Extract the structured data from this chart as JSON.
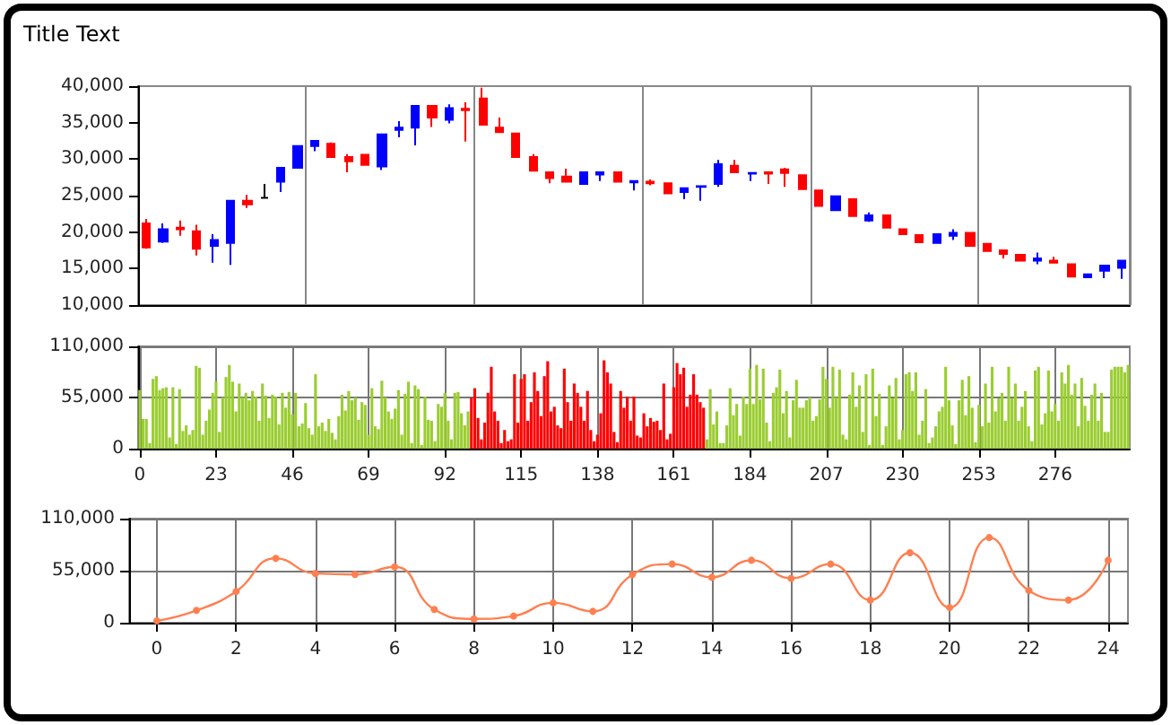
{
  "chart_data": [
    {
      "type": "candlestick",
      "title": "Title Text",
      "categories": [
        null,
        null,
        null,
        null,
        null,
        null,
        null,
        null,
        null,
        null,
        null,
        null,
        null,
        null,
        null,
        null,
        null,
        null,
        null,
        null,
        null,
        null,
        null,
        null,
        null,
        null,
        null,
        null,
        null,
        null,
        null,
        null,
        null,
        null,
        null,
        null,
        null,
        null,
        null,
        null,
        null,
        null,
        null,
        null,
        null,
        null,
        null,
        null,
        null,
        null,
        null,
        null,
        null,
        null,
        null,
        null,
        null,
        null,
        null
      ],
      "ohlc": [
        [
          21200,
          21800,
          17700,
          17900
        ],
        [
          18700,
          21200,
          18500,
          20400
        ],
        [
          20600,
          21600,
          19500,
          20400
        ],
        [
          20100,
          21000,
          16800,
          17700
        ],
        [
          18100,
          19700,
          15800,
          18900
        ],
        [
          18500,
          24300,
          15500,
          24300
        ],
        [
          24300,
          25100,
          23300,
          23800
        ],
        [
          24700,
          26600,
          24700,
          24700
        ],
        [
          26900,
          28800,
          25500,
          28800
        ],
        [
          28800,
          31800,
          28800,
          31800
        ],
        [
          31800,
          32500,
          31100,
          32500
        ],
        [
          32100,
          32300,
          30300,
          30300
        ],
        [
          30300,
          30700,
          28200,
          29700
        ],
        [
          30600,
          30700,
          29200,
          29200
        ],
        [
          29000,
          33400,
          28500,
          33400
        ],
        [
          34000,
          35200,
          33000,
          34300
        ],
        [
          34300,
          37300,
          31900,
          37300
        ],
        [
          37300,
          37300,
          34400,
          35700
        ],
        [
          35400,
          37500,
          34900,
          37000
        ],
        [
          36900,
          37800,
          32400,
          36700
        ],
        [
          38300,
          39800,
          34700,
          34700
        ],
        [
          34300,
          35700,
          33700,
          33700
        ],
        [
          33500,
          33500,
          30300,
          30300
        ],
        [
          30300,
          30700,
          28400,
          28400
        ],
        [
          28200,
          28200,
          26700,
          27400
        ],
        [
          27600,
          28700,
          26900,
          26900
        ],
        [
          26600,
          28200,
          26600,
          28200
        ],
        [
          27900,
          28200,
          27000,
          28200
        ],
        [
          28200,
          28200,
          26900,
          26900
        ],
        [
          26800,
          27000,
          25700,
          27000
        ],
        [
          26900,
          27200,
          26400,
          26700
        ],
        [
          26700,
          26700,
          25300,
          25300
        ],
        [
          25500,
          26000,
          24500,
          26000
        ],
        [
          26200,
          26300,
          24300,
          26300
        ],
        [
          26600,
          29900,
          26200,
          29300
        ],
        [
          29100,
          29900,
          28200,
          28200
        ],
        [
          28000,
          28100,
          27000,
          28100
        ],
        [
          28200,
          28200,
          26600,
          28000
        ],
        [
          28600,
          28800,
          26200,
          28100
        ],
        [
          27800,
          27800,
          25900,
          25900
        ],
        [
          25700,
          25700,
          23600,
          23600
        ],
        [
          23000,
          24900,
          22900,
          24900
        ],
        [
          24500,
          24500,
          22200,
          22200
        ],
        [
          21600,
          22700,
          21400,
          22300
        ],
        [
          22300,
          22300,
          20600,
          20600
        ],
        [
          20400,
          20400,
          19700,
          19700
        ],
        [
          19600,
          19600,
          18600,
          18600
        ],
        [
          18500,
          19700,
          18500,
          19700
        ],
        [
          19500,
          20400,
          18900,
          19900
        ],
        [
          19900,
          19900,
          18100,
          18100
        ],
        [
          18400,
          18400,
          17400,
          17400
        ],
        [
          17500,
          17500,
          16400,
          17000
        ],
        [
          16900,
          16900,
          16100,
          16100
        ],
        [
          16100,
          17200,
          15600,
          16400
        ],
        [
          16100,
          16600,
          15800,
          15800
        ],
        [
          15600,
          15600,
          13900,
          13900
        ],
        [
          13800,
          14200,
          13800,
          14200
        ],
        [
          14700,
          15400,
          13700,
          15400
        ],
        [
          15100,
          16100,
          13600,
          16100
        ]
      ],
      "colors": [
        "#ff0000",
        "#0000ff",
        "#ff0000",
        "#ff0000",
        "#0000ff",
        "#0000ff",
        "#ff0000",
        "#000000",
        "#0000ff",
        "#0000ff",
        "#0000ff",
        "#ff0000",
        "#ff0000",
        "#ff0000",
        "#0000ff",
        "#0000ff",
        "#0000ff",
        "#ff0000",
        "#0000ff",
        "#ff0000",
        "#ff0000",
        "#ff0000",
        "#ff0000",
        "#ff0000",
        "#ff0000",
        "#ff0000",
        "#0000ff",
        "#0000ff",
        "#ff0000",
        "#0000ff",
        "#ff0000",
        "#ff0000",
        "#0000ff",
        "#0000ff",
        "#0000ff",
        "#ff0000",
        "#0000ff",
        "#ff0000",
        "#ff0000",
        "#ff0000",
        "#ff0000",
        "#0000ff",
        "#ff0000",
        "#0000ff",
        "#ff0000",
        "#ff0000",
        "#ff0000",
        "#0000ff",
        "#0000ff",
        "#ff0000",
        "#ff0000",
        "#ff0000",
        "#ff0000",
        "#0000ff",
        "#ff0000",
        "#ff0000",
        "#0000ff",
        "#0000ff",
        "#0000ff"
      ],
      "ylim": [
        10000,
        40000
      ],
      "yticks": [
        {
          "value": 10000,
          "label": "10,000"
        },
        {
          "value": 15000,
          "label": "15,000"
        },
        {
          "value": 20000,
          "label": "20,000"
        },
        {
          "value": 25000,
          "label": "25,000"
        },
        {
          "value": 30000,
          "label": "30,000"
        },
        {
          "value": 35000,
          "label": "35,000"
        },
        {
          "value": 40000,
          "label": "40,000"
        }
      ]
    },
    {
      "type": "bar",
      "x": [
        0,
        1,
        2,
        3,
        4,
        5,
        6,
        7,
        8,
        9,
        10,
        11,
        12,
        13,
        14,
        15,
        16,
        17,
        18,
        19,
        20,
        21,
        22,
        23,
        24,
        25,
        26,
        27,
        28,
        29,
        30,
        31,
        32,
        33,
        34,
        35,
        36,
        37,
        38,
        39,
        40,
        41,
        42,
        43,
        44,
        45,
        46,
        47,
        48,
        49,
        50,
        51,
        52,
        53,
        54,
        55,
        56,
        57,
        58,
        59,
        60,
        61,
        62,
        63,
        64,
        65,
        66,
        67,
        68,
        69,
        70,
        71,
        72,
        73,
        74,
        75,
        76,
        77,
        78,
        79,
        80,
        81,
        82,
        83,
        84,
        85,
        86,
        87,
        88,
        89,
        90,
        91,
        92,
        93,
        94,
        95,
        96,
        97,
        98,
        99,
        100,
        101,
        102,
        103,
        104,
        105,
        106,
        107,
        108,
        109,
        110,
        111,
        112,
        113,
        114,
        115,
        116,
        117,
        118,
        119,
        120,
        121,
        122,
        123,
        124,
        125,
        126,
        127,
        128,
        129,
        130,
        131,
        132,
        133,
        134,
        135,
        136,
        137,
        138,
        139,
        140,
        141,
        142,
        143,
        144,
        145,
        146,
        147,
        148,
        149,
        150,
        151,
        152,
        153,
        154,
        155,
        156,
        157,
        158,
        159,
        160,
        161,
        162,
        163,
        164,
        165,
        166,
        167,
        168,
        169,
        170,
        171,
        172,
        173,
        174,
        175,
        176,
        177,
        178,
        179,
        180,
        181,
        182,
        183,
        184,
        185,
        186,
        187,
        188,
        189,
        190,
        191,
        192,
        193,
        194,
        195,
        196,
        197,
        198,
        199,
        200,
        201,
        202,
        203,
        204,
        205,
        206,
        207,
        208,
        209,
        210,
        211,
        212,
        213,
        214,
        215,
        216,
        217,
        218,
        219,
        220,
        221,
        222,
        223,
        224,
        225,
        226,
        227,
        228,
        229,
        230,
        231,
        232,
        233,
        234,
        235,
        236,
        237,
        238,
        239,
        240,
        241,
        242,
        243,
        244,
        245,
        246,
        247,
        248,
        249,
        250,
        251,
        252,
        253,
        254,
        255,
        256,
        257,
        258,
        259,
        260,
        261,
        262,
        263,
        264,
        265,
        266,
        267,
        268,
        269,
        270,
        271,
        272,
        273,
        274,
        275,
        276,
        277,
        278,
        279,
        280,
        281,
        282,
        283,
        284,
        285,
        286,
        287,
        288,
        289,
        290,
        291,
        292,
        293,
        294,
        295,
        296,
        297,
        298
      ],
      "values": [
        63000,
        32000,
        32000,
        6000,
        75000,
        78000,
        63000,
        65000,
        66000,
        12000,
        66000,
        5000,
        64000,
        19000,
        25000,
        15000,
        20000,
        89000,
        87000,
        15000,
        30000,
        42000,
        60000,
        72000,
        18000,
        55000,
        77000,
        90000,
        72000,
        40000,
        70000,
        55000,
        60000,
        52000,
        62000,
        56000,
        30000,
        70000,
        57000,
        33000,
        58000,
        56000,
        26000,
        60000,
        44000,
        61000,
        37000,
        60000,
        24000,
        27000,
        49000,
        22000,
        15000,
        80000,
        24000,
        28000,
        19000,
        32000,
        17000,
        10000,
        35000,
        58000,
        41000,
        62000,
        52000,
        55000,
        31000,
        50000,
        47000,
        15000,
        65000,
        24000,
        21000,
        73000,
        55000,
        40000,
        32000,
        43000,
        63000,
        15000,
        59000,
        72000,
        6000,
        68000,
        64000,
        4000,
        56000,
        31000,
        30000,
        8000,
        48000,
        45000,
        60000,
        30000,
        10000,
        60000,
        61000,
        38000,
        25000,
        40000,
        55000,
        65000,
        33000,
        10000,
        28000,
        60000,
        88000,
        40000,
        30000,
        6000,
        20000,
        8000,
        10000,
        80000,
        28000,
        75000,
        80000,
        30000,
        50000,
        82000,
        62000,
        35000,
        78000,
        94000,
        40000,
        45000,
        25000,
        22000,
        86000,
        50000,
        30000,
        70000,
        60000,
        45000,
        30000,
        62000,
        20000,
        8000,
        15000,
        38000,
        95000,
        82000,
        70000,
        18000,
        7000,
        62000,
        44000,
        56000,
        30000,
        56000,
        14000,
        12000,
        38000,
        24000,
        33000,
        29000,
        30000,
        20000,
        70000,
        10000,
        16000,
        66000,
        92000,
        80000,
        87000,
        45000,
        58000,
        80000,
        58000,
        50000,
        44000,
        10000,
        64000,
        26000,
        40000,
        6000,
        6000,
        25000,
        65000,
        36000,
        48000,
        14000,
        56000,
        48000,
        86000,
        48000,
        90000,
        53000,
        86000,
        28000,
        8000,
        60000,
        66000,
        85000,
        38000,
        62000,
        12000,
        52000,
        74000,
        44000,
        44000,
        52000,
        55000,
        30000,
        35000,
        53000,
        88000,
        75000,
        44000,
        88000,
        55000,
        85000,
        15000,
        10000,
        58000,
        82000,
        45000,
        68000,
        18000,
        80000,
        4000,
        86000,
        35000,
        59000,
        4000,
        24000,
        68000,
        54000,
        76000,
        10000,
        20000,
        80000,
        82000,
        62000,
        82000,
        15000,
        30000,
        64000,
        6000,
        12000,
        24000,
        40000,
        45000,
        88000,
        52000,
        25000,
        5000,
        52000,
        74000,
        36000,
        78000,
        44000,
        7000,
        47000,
        24000,
        70000,
        28000,
        88000,
        40000,
        54000,
        60000,
        30000,
        88000,
        54000,
        70000,
        30000,
        45000,
        62000,
        24000,
        8000,
        84000,
        88000,
        26000,
        38000,
        84000,
        40000,
        48000,
        30000,
        82000,
        70000,
        90000,
        58000,
        70000,
        24000,
        76000,
        46000,
        30000,
        58000,
        70000,
        30000,
        60000,
        18000,
        18000,
        85000,
        88000,
        88000,
        88000,
        82000,
        90000
      ],
      "colors": [
        "#9acd32",
        "#9acd32",
        "#9acd32",
        "#9acd32",
        "#9acd32",
        "#9acd32",
        "#9acd32",
        "#9acd32",
        "#9acd32",
        "#9acd32",
        "#9acd32",
        "#9acd32",
        "#9acd32",
        "#9acd32",
        "#9acd32",
        "#9acd32",
        "#9acd32",
        "#9acd32",
        "#9acd32",
        "#9acd32",
        "#9acd32",
        "#9acd32",
        "#9acd32",
        "#9acd32",
        "#9acd32",
        "#9acd32",
        "#9acd32",
        "#9acd32",
        "#9acd32",
        "#9acd32",
        "#9acd32",
        "#9acd32",
        "#9acd32",
        "#9acd32",
        "#9acd32",
        "#9acd32",
        "#9acd32",
        "#9acd32",
        "#9acd32",
        "#9acd32",
        "#9acd32",
        "#9acd32",
        "#9acd32",
        "#9acd32",
        "#9acd32",
        "#9acd32",
        "#9acd32",
        "#9acd32",
        "#9acd32",
        "#9acd32",
        "#9acd32",
        "#9acd32",
        "#9acd32",
        "#9acd32",
        "#9acd32",
        "#9acd32",
        "#9acd32",
        "#9acd32",
        "#9acd32",
        "#9acd32",
        "#9acd32",
        "#9acd32",
        "#9acd32",
        "#9acd32",
        "#9acd32",
        "#9acd32",
        "#9acd32",
        "#9acd32",
        "#9acd32",
        "#9acd32",
        "#9acd32",
        "#9acd32",
        "#9acd32",
        "#9acd32",
        "#9acd32",
        "#9acd32",
        "#9acd32",
        "#9acd32",
        "#9acd32",
        "#9acd32",
        "#9acd32",
        "#9acd32",
        "#9acd32",
        "#9acd32",
        "#9acd32",
        "#9acd32",
        "#9acd32",
        "#9acd32",
        "#9acd32",
        "#9acd32",
        "#9acd32",
        "#9acd32",
        "#9acd32",
        "#9acd32",
        "#9acd32",
        "#9acd32",
        "#9acd32",
        "#9acd32",
        "#9acd32",
        "#9acd32",
        "#ff0000",
        "#ff0000",
        "#ff0000",
        "#ff0000",
        "#ff0000",
        "#ff0000",
        "#ff0000",
        "#ff0000",
        "#ff0000",
        "#ff0000",
        "#ff0000",
        "#ff0000",
        "#ff0000",
        "#ff0000",
        "#ff0000",
        "#ff0000",
        "#ff0000",
        "#ff0000",
        "#ff0000",
        "#ff0000",
        "#ff0000",
        "#ff0000",
        "#ff0000",
        "#ff0000",
        "#ff0000",
        "#ff0000",
        "#ff0000",
        "#ff0000",
        "#ff0000",
        "#ff0000",
        "#ff0000",
        "#ff0000",
        "#ff0000",
        "#ff0000",
        "#ff0000",
        "#ff0000",
        "#ff0000",
        "#ff0000",
        "#ff0000",
        "#ff0000",
        "#ff0000",
        "#ff0000",
        "#ff0000",
        "#ff0000",
        "#ff0000",
        "#ff0000",
        "#ff0000",
        "#ff0000",
        "#ff0000",
        "#ff0000",
        "#ff0000",
        "#ff0000",
        "#ff0000",
        "#ff0000",
        "#ff0000",
        "#ff0000",
        "#ff0000",
        "#ff0000",
        "#ff0000",
        "#ff0000",
        "#ff0000",
        "#ff0000",
        "#ff0000",
        "#ff0000",
        "#ff0000",
        "#ff0000",
        "#ff0000",
        "#ff0000",
        "#ff0000",
        "#ff0000",
        "#ff0000",
        "#9acd32",
        "#9acd32",
        "#9acd32",
        "#9acd32",
        "#9acd32",
        "#9acd32",
        "#9acd32",
        "#9acd32",
        "#9acd32",
        "#9acd32",
        "#9acd32",
        "#9acd32",
        "#9acd32",
        "#9acd32",
        "#9acd32",
        "#9acd32",
        "#9acd32",
        "#9acd32",
        "#9acd32",
        "#9acd32",
        "#9acd32",
        "#9acd32",
        "#9acd32",
        "#9acd32",
        "#9acd32",
        "#9acd32",
        "#9acd32",
        "#9acd32",
        "#9acd32",
        "#9acd32",
        "#9acd32",
        "#9acd32",
        "#9acd32",
        "#9acd32",
        "#9acd32",
        "#9acd32",
        "#9acd32",
        "#9acd32",
        "#9acd32",
        "#9acd32",
        "#9acd32",
        "#9acd32",
        "#9acd32",
        "#9acd32",
        "#9acd32",
        "#9acd32",
        "#9acd32",
        "#9acd32",
        "#9acd32",
        "#9acd32",
        "#9acd32",
        "#9acd32",
        "#9acd32",
        "#9acd32",
        "#9acd32",
        "#9acd32",
        "#9acd32",
        "#9acd32",
        "#9acd32",
        "#9acd32",
        "#9acd32",
        "#9acd32",
        "#9acd32",
        "#9acd32",
        "#9acd32",
        "#9acd32",
        "#9acd32",
        "#9acd32",
        "#9acd32",
        "#9acd32",
        "#9acd32",
        "#9acd32",
        "#9acd32",
        "#9acd32",
        "#9acd32",
        "#9acd32",
        "#9acd32",
        "#9acd32",
        "#9acd32",
        "#9acd32",
        "#9acd32",
        "#9acd32",
        "#9acd32",
        "#9acd32",
        "#9acd32",
        "#9acd32",
        "#9acd32",
        "#9acd32",
        "#9acd32",
        "#9acd32",
        "#9acd32",
        "#9acd32",
        "#9acd32",
        "#9acd32",
        "#9acd32",
        "#9acd32",
        "#9acd32",
        "#9acd32",
        "#9acd32",
        "#9acd32",
        "#9acd32",
        "#9acd32",
        "#9acd32",
        "#9acd32",
        "#9acd32",
        "#9acd32",
        "#9acd32",
        "#9acd32",
        "#9acd32",
        "#9acd32",
        "#9acd32",
        "#9acd32",
        "#9acd32",
        "#9acd32",
        "#9acd32",
        "#9acd32",
        "#9acd32",
        "#9acd32",
        "#9acd32",
        "#9acd32",
        "#9acd32",
        "#9acd32",
        "#9acd32",
        "#9acd32",
        "#9acd32",
        "#9acd32",
        "#9acd32",
        "#9acd32"
      ],
      "xlim": [
        -0.5,
        298.5
      ],
      "xticks": [
        0,
        23,
        46,
        69,
        92,
        115,
        138,
        161,
        184,
        207,
        230,
        253,
        276
      ],
      "ylim": [
        0,
        110000
      ],
      "yticks": [
        0,
        {
          "value": 55000,
          "label": "55,000"
        },
        {
          "value": 110000,
          "label": "110,000"
        }
      ],
      "grid": true
    },
    {
      "type": "line",
      "x": [
        0,
        1,
        2,
        3,
        4,
        5,
        6,
        7,
        8,
        9,
        10,
        11,
        12,
        13,
        14,
        15,
        16,
        17,
        18,
        19,
        20,
        21,
        22,
        23,
        24
      ],
      "values": [
        2000,
        13000,
        33000,
        68000,
        52000,
        51000,
        59000,
        14000,
        4000,
        7000,
        21000,
        12000,
        51000,
        62000,
        48000,
        66000,
        47000,
        62000,
        24000,
        74000,
        16000,
        90000,
        34000,
        24000,
        66000
      ],
      "color": "#ff7f50",
      "marker": "circle",
      "xlim": [
        -0.7,
        24.5
      ],
      "xticks": [
        0,
        2,
        4,
        6,
        8,
        10,
        12,
        14,
        16,
        18,
        20,
        22,
        24
      ],
      "ylim": [
        0,
        110000
      ],
      "yticks": [
        0,
        {
          "value": 55000,
          "label": "55,000"
        },
        {
          "value": 110000,
          "label": "110,000"
        }
      ],
      "grid": true
    }
  ]
}
